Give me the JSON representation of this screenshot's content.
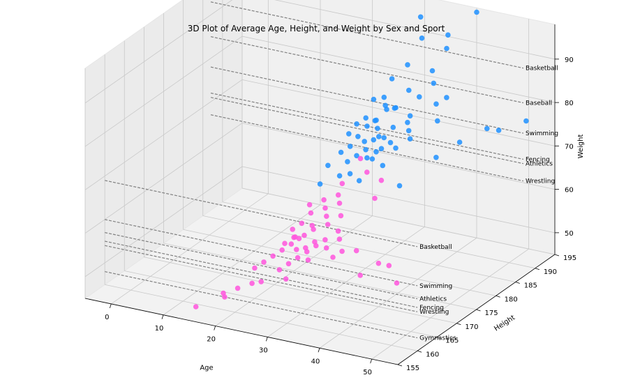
{
  "chart_data": {
    "type": "scatter",
    "title": "3D Plot of Average Age, Height, and Weight by Sex and Sport",
    "xlabel": "Age",
    "ylabel": "Height",
    "zlabel": "Weight",
    "xlim": [
      -5,
      55
    ],
    "ylim": [
      155,
      195
    ],
    "zlim": [
      45,
      98
    ],
    "x_ticks": [
      "0",
      "10",
      "20",
      "30",
      "40",
      "50"
    ],
    "y_ticks": [
      "155",
      "160",
      "165",
      "170",
      "175",
      "180",
      "185",
      "190",
      "195"
    ],
    "z_ticks": [
      "50",
      "60",
      "70",
      "80",
      "90"
    ],
    "grid": true,
    "colors": {
      "male": "#1e90ff",
      "female": "#ff55dd"
    },
    "annotation_line_color": "#808080",
    "annotations_male": [
      {
        "label": "Basketball",
        "weight": 93
      },
      {
        "label": "Baseball",
        "weight": 85
      },
      {
        "label": "Swimming",
        "weight": 78
      },
      {
        "label": "Fencing",
        "weight": 72
      },
      {
        "label": "Athletics",
        "weight": 71
      },
      {
        "label": "Wrestling",
        "weight": 67
      }
    ],
    "annotations_female": [
      {
        "label": "Basketball",
        "weight": 69
      },
      {
        "label": "Swimming",
        "weight": 60
      },
      {
        "label": "Athletics",
        "weight": 57
      },
      {
        "label": "Fencing",
        "weight": 55
      },
      {
        "label": "Wrestling",
        "weight": 54
      },
      {
        "label": "Gymnastics",
        "weight": 48
      }
    ],
    "series": [
      {
        "sex": "male",
        "points": [
          [
            27,
            186,
            70
          ],
          [
            25,
            189,
            72
          ],
          [
            29,
            183,
            68
          ],
          [
            31,
            190,
            74
          ],
          [
            23,
            185,
            71
          ],
          [
            28,
            188,
            76
          ],
          [
            26,
            192,
            80
          ],
          [
            30,
            187,
            73
          ],
          [
            24,
            184,
            69
          ],
          [
            32,
            191,
            78
          ],
          [
            27,
            180,
            66
          ],
          [
            29,
            186,
            71
          ],
          [
            33,
            193,
            83
          ],
          [
            25,
            182,
            67
          ],
          [
            28,
            190,
            75
          ],
          [
            30,
            184,
            70
          ],
          [
            26,
            188,
            73
          ],
          [
            34,
            192,
            81
          ],
          [
            22,
            181,
            66
          ],
          [
            27,
            187,
            72
          ],
          [
            31,
            185,
            71
          ],
          [
            29,
            189,
            76
          ],
          [
            24,
            186,
            70
          ],
          [
            35,
            194,
            88
          ],
          [
            28,
            183,
            68
          ],
          [
            26,
            190,
            77
          ],
          [
            30,
            191,
            79
          ],
          [
            32,
            188,
            74
          ],
          [
            25,
            187,
            72
          ],
          [
            23,
            183,
            68
          ],
          [
            36,
            193,
            92
          ],
          [
            34,
            186,
            72
          ],
          [
            27,
            184,
            69
          ],
          [
            29,
            192,
            84
          ],
          [
            31,
            183,
            67
          ],
          [
            28,
            186,
            71
          ],
          [
            37,
            189,
            75
          ],
          [
            26,
            185,
            70
          ],
          [
            24,
            188,
            73
          ],
          [
            30,
            194,
            94
          ],
          [
            40,
            195,
            97
          ],
          [
            33,
            187,
            73
          ],
          [
            25,
            180,
            65
          ],
          [
            28,
            181,
            64
          ],
          [
            38,
            190,
            80
          ],
          [
            29,
            184,
            69
          ],
          [
            42,
            188,
            72
          ],
          [
            45,
            191,
            74
          ],
          [
            51,
            193,
            76
          ],
          [
            22,
            179,
            63
          ],
          [
            26,
            183,
            68
          ],
          [
            31,
            193,
            90
          ],
          [
            35,
            182,
            64
          ],
          [
            27,
            189,
            76
          ],
          [
            32,
            185,
            70
          ],
          [
            39,
            186,
            69
          ],
          [
            36,
            190,
            78
          ],
          [
            23,
            187,
            72
          ],
          [
            48,
            190,
            75
          ],
          [
            24,
            190,
            76
          ]
        ]
      },
      {
        "sex": "female",
        "points": [
          [
            24,
            170,
            57
          ],
          [
            26,
            172,
            58
          ],
          [
            23,
            168,
            55
          ],
          [
            27,
            174,
            60
          ],
          [
            25,
            171,
            57
          ],
          [
            22,
            167,
            54
          ],
          [
            28,
            173,
            59
          ],
          [
            24,
            169,
            56
          ],
          [
            26,
            175,
            61
          ],
          [
            21,
            166,
            53
          ],
          [
            29,
            171,
            57
          ],
          [
            25,
            173,
            58
          ],
          [
            23,
            171,
            56
          ],
          [
            27,
            169,
            55
          ],
          [
            24,
            174,
            60
          ],
          [
            30,
            170,
            56
          ],
          [
            22,
            170,
            55
          ],
          [
            26,
            168,
            54
          ],
          [
            28,
            176,
            62
          ],
          [
            25,
            167,
            53
          ],
          [
            31,
            172,
            57
          ],
          [
            23,
            173,
            58
          ],
          [
            27,
            171,
            56
          ],
          [
            20,
            165,
            52
          ],
          [
            24,
            166,
            52
          ],
          [
            29,
            175,
            60
          ],
          [
            26,
            170,
            55
          ],
          [
            32,
            169,
            55
          ],
          [
            25,
            176,
            62
          ],
          [
            28,
            168,
            54
          ],
          [
            22,
            172,
            57
          ],
          [
            27,
            177,
            63
          ],
          [
            21,
            163,
            50
          ],
          [
            26,
            165,
            51
          ],
          [
            33,
            170,
            56
          ],
          [
            24,
            171,
            56
          ],
          [
            30,
            173,
            58
          ],
          [
            25,
            169,
            55
          ],
          [
            28,
            170,
            56
          ],
          [
            23,
            175,
            61
          ],
          [
            14,
            158,
            46
          ],
          [
            18,
            160,
            48
          ],
          [
            19,
            162,
            49
          ],
          [
            17,
            161,
            48
          ],
          [
            22,
            164,
            50
          ],
          [
            35,
            171,
            56
          ],
          [
            40,
            170,
            55
          ],
          [
            42,
            170,
            55
          ],
          [
            45,
            168,
            53
          ],
          [
            38,
            168,
            53
          ],
          [
            29,
            180,
            70
          ],
          [
            31,
            179,
            68
          ],
          [
            33,
            180,
            66
          ],
          [
            27,
            178,
            65
          ],
          [
            34,
            177,
            64
          ]
        ]
      }
    ]
  }
}
